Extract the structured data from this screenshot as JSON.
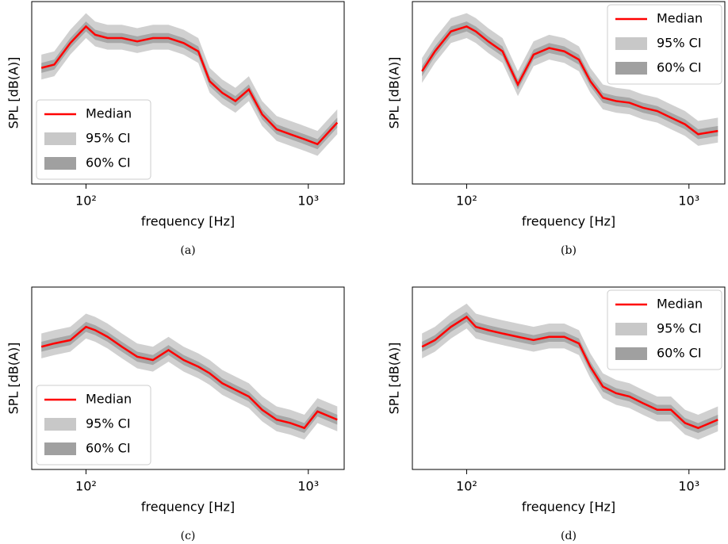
{
  "chart_data": [
    {
      "type": "line",
      "caption": "(a)",
      "x_label": "frequency [Hz]",
      "y_label": "SPL [dB(A)]",
      "log_x": true,
      "legend": "lower left",
      "xlim": [
        57,
        1450
      ],
      "ylim": [
        0,
        110
      ],
      "xticks": [
        {
          "value": 100,
          "label": "10²"
        },
        {
          "value": 1000,
          "label": "10³"
        }
      ],
      "x": [
        63,
        72,
        85,
        100,
        110,
        125,
        145,
        170,
        200,
        235,
        275,
        320,
        360,
        410,
        470,
        540,
        620,
        720,
        830,
        960,
        1100,
        1350
      ],
      "series": [
        {
          "name": "Median",
          "color": "#ff0000",
          "values": [
            70,
            72,
            85,
            95,
            90,
            88,
            88,
            86,
            88,
            88,
            85,
            80,
            62,
            55,
            50,
            57,
            42,
            33,
            30,
            27,
            24,
            37
          ]
        },
        {
          "name": "95% CI",
          "color": "#c8c8c8",
          "lower": [
            63,
            65,
            78,
            88,
            83,
            81,
            81,
            79,
            81,
            81,
            78,
            73,
            55,
            48,
            43,
            50,
            35,
            26,
            23,
            20,
            17,
            30
          ],
          "upper": [
            78,
            80,
            93,
            103,
            98,
            96,
            96,
            94,
            96,
            96,
            93,
            88,
            70,
            63,
            58,
            65,
            50,
            41,
            38,
            35,
            32,
            45
          ]
        },
        {
          "name": "60% CI",
          "color": "#a0a0a0",
          "lower": [
            67,
            69,
            82,
            92,
            87,
            85,
            85,
            83,
            85,
            85,
            82,
            77,
            59,
            52,
            47,
            54,
            39,
            30,
            27,
            24,
            21,
            34
          ],
          "upper": [
            73,
            75,
            88,
            98,
            93,
            91,
            91,
            89,
            91,
            91,
            88,
            83,
            65,
            58,
            53,
            60,
            45,
            36,
            33,
            30,
            27,
            40
          ]
        }
      ]
    },
    {
      "type": "line",
      "caption": "(b)",
      "x_label": "frequency [Hz]",
      "y_label": "SPL [dB(A)]",
      "log_x": true,
      "legend": "upper right",
      "xlim": [
        57,
        1450
      ],
      "ylim": [
        0,
        110
      ],
      "xticks": [
        {
          "value": 100,
          "label": "10²"
        },
        {
          "value": 1000,
          "label": "10³"
        }
      ],
      "x": [
        63,
        72,
        85,
        100,
        110,
        125,
        145,
        170,
        200,
        235,
        275,
        320,
        360,
        410,
        470,
        540,
        620,
        720,
        830,
        960,
        1100,
        1350
      ],
      "series": [
        {
          "name": "Median",
          "color": "#ff0000",
          "values": [
            68,
            80,
            92,
            95,
            92,
            86,
            80,
            60,
            78,
            82,
            80,
            75,
            62,
            52,
            50,
            49,
            46,
            44,
            40,
            36,
            30,
            32
          ]
        },
        {
          "name": "95% CI",
          "color": "#c8c8c8",
          "lower": [
            61,
            73,
            85,
            88,
            85,
            79,
            73,
            53,
            71,
            75,
            73,
            68,
            55,
            45,
            43,
            42,
            39,
            37,
            33,
            29,
            23,
            25
          ],
          "upper": [
            76,
            88,
            100,
            103,
            100,
            94,
            88,
            68,
            86,
            90,
            88,
            83,
            70,
            60,
            58,
            57,
            54,
            52,
            48,
            44,
            38,
            40
          ]
        },
        {
          "name": "60% CI",
          "color": "#a0a0a0",
          "lower": [
            65,
            77,
            89,
            92,
            89,
            83,
            77,
            57,
            75,
            79,
            77,
            72,
            59,
            49,
            47,
            46,
            43,
            41,
            37,
            33,
            27,
            29
          ],
          "upper": [
            71,
            83,
            95,
            98,
            95,
            89,
            83,
            63,
            81,
            85,
            83,
            78,
            65,
            55,
            53,
            52,
            49,
            47,
            43,
            39,
            33,
            35
          ]
        }
      ]
    },
    {
      "type": "line",
      "caption": "(c)",
      "x_label": "frequency [Hz]",
      "y_label": "SPL [dB(A)]",
      "log_x": true,
      "legend": "lower left",
      "xlim": [
        57,
        1450
      ],
      "ylim": [
        0,
        110
      ],
      "xticks": [
        {
          "value": 100,
          "label": "10²"
        },
        {
          "value": 1000,
          "label": "10³"
        }
      ],
      "x": [
        63,
        72,
        85,
        100,
        110,
        125,
        145,
        170,
        200,
        235,
        275,
        320,
        360,
        410,
        470,
        540,
        620,
        720,
        830,
        960,
        1100,
        1350
      ],
      "series": [
        {
          "name": "Median",
          "color": "#ff0000",
          "values": [
            74,
            76,
            78,
            86,
            84,
            80,
            74,
            68,
            66,
            72,
            66,
            62,
            58,
            52,
            48,
            44,
            36,
            30,
            28,
            25,
            35,
            30
          ]
        },
        {
          "name": "95% CI",
          "color": "#c8c8c8",
          "lower": [
            67,
            69,
            71,
            79,
            77,
            73,
            67,
            61,
            59,
            65,
            59,
            55,
            51,
            45,
            41,
            37,
            29,
            23,
            21,
            18,
            28,
            23
          ],
          "upper": [
            82,
            84,
            86,
            94,
            92,
            88,
            82,
            76,
            74,
            80,
            74,
            70,
            66,
            60,
            56,
            52,
            44,
            38,
            36,
            33,
            43,
            38
          ]
        },
        {
          "name": "60% CI",
          "color": "#a0a0a0",
          "lower": [
            71,
            73,
            75,
            83,
            81,
            77,
            71,
            65,
            63,
            69,
            63,
            59,
            55,
            49,
            45,
            41,
            33,
            27,
            25,
            22,
            32,
            27
          ],
          "upper": [
            77,
            79,
            81,
            89,
            87,
            83,
            77,
            71,
            69,
            75,
            69,
            65,
            61,
            55,
            51,
            47,
            39,
            33,
            31,
            28,
            38,
            33
          ]
        }
      ]
    },
    {
      "type": "line",
      "caption": "(d)",
      "x_label": "frequency [Hz]",
      "y_label": "SPL [dB(A)]",
      "log_x": true,
      "legend": "upper right",
      "xlim": [
        57,
        1450
      ],
      "ylim": [
        0,
        110
      ],
      "xticks": [
        {
          "value": 100,
          "label": "10²"
        },
        {
          "value": 1000,
          "label": "10³"
        }
      ],
      "x": [
        63,
        72,
        85,
        100,
        110,
        125,
        145,
        170,
        200,
        235,
        275,
        320,
        360,
        410,
        470,
        540,
        620,
        720,
        830,
        960,
        1100,
        1350
      ],
      "series": [
        {
          "name": "Median",
          "color": "#ff0000",
          "values": [
            74,
            78,
            86,
            92,
            86,
            84,
            82,
            80,
            78,
            80,
            80,
            76,
            62,
            50,
            46,
            44,
            40,
            36,
            36,
            28,
            25,
            30
          ]
        },
        {
          "name": "95% CI",
          "color": "#c8c8c8",
          "lower": [
            67,
            71,
            79,
            85,
            79,
            77,
            75,
            73,
            71,
            73,
            73,
            69,
            55,
            43,
            39,
            37,
            33,
            29,
            29,
            21,
            18,
            23
          ],
          "upper": [
            82,
            86,
            94,
            100,
            94,
            92,
            90,
            88,
            86,
            88,
            88,
            84,
            70,
            58,
            54,
            52,
            48,
            44,
            44,
            36,
            33,
            38
          ]
        },
        {
          "name": "60% CI",
          "color": "#a0a0a0",
          "lower": [
            71,
            75,
            83,
            89,
            83,
            81,
            79,
            77,
            75,
            77,
            77,
            73,
            59,
            47,
            43,
            41,
            37,
            33,
            33,
            25,
            22,
            27
          ],
          "upper": [
            77,
            81,
            89,
            95,
            89,
            87,
            85,
            83,
            81,
            83,
            83,
            79,
            65,
            53,
            49,
            47,
            43,
            39,
            39,
            31,
            28,
            33
          ]
        }
      ]
    }
  ]
}
